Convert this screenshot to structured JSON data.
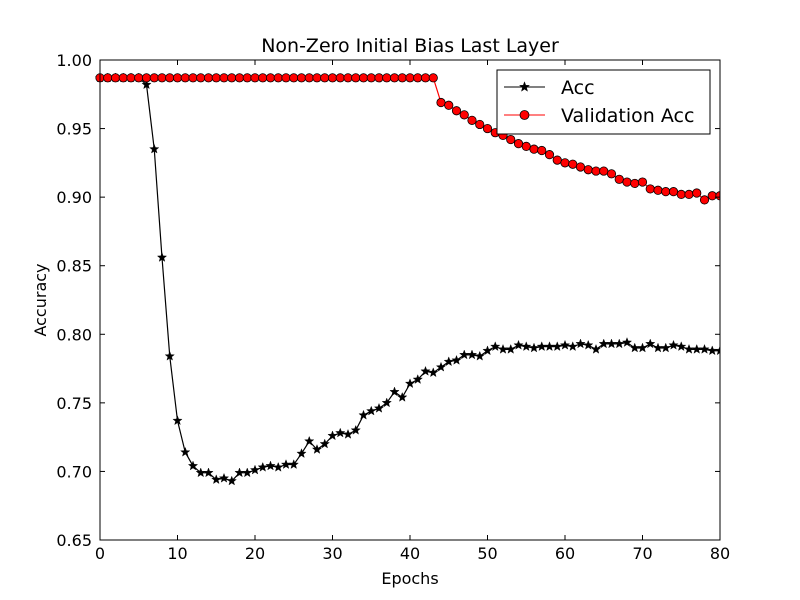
{
  "chart_data": {
    "type": "line",
    "title": "Non-Zero Initial Bias Last Layer",
    "xlabel": "Epochs",
    "ylabel": "Accuracy",
    "xlim": [
      0,
      80
    ],
    "ylim": [
      0.65,
      1.0
    ],
    "xticks": [
      0,
      10,
      20,
      30,
      40,
      50,
      60,
      70,
      80
    ],
    "xtick_labels": [
      "0",
      "10",
      "20",
      "30",
      "40",
      "50",
      "60",
      "70",
      "80"
    ],
    "yticks": [
      0.65,
      0.7,
      0.75,
      0.8,
      0.85,
      0.9,
      0.95,
      1.0
    ],
    "ytick_labels": [
      "0.65",
      "0.70",
      "0.75",
      "0.80",
      "0.85",
      "0.90",
      "0.95",
      "1.00"
    ],
    "grid": false,
    "legend_position": "top-right",
    "x": [
      0,
      1,
      2,
      3,
      4,
      5,
      6,
      7,
      8,
      9,
      10,
      11,
      12,
      13,
      14,
      15,
      16,
      17,
      18,
      19,
      20,
      21,
      22,
      23,
      24,
      25,
      26,
      27,
      28,
      29,
      30,
      31,
      32,
      33,
      34,
      35,
      36,
      37,
      38,
      39,
      40,
      41,
      42,
      43,
      44,
      45,
      46,
      47,
      48,
      49,
      50,
      51,
      52,
      53,
      54,
      55,
      56,
      57,
      58,
      59,
      60,
      61,
      62,
      63,
      64,
      65,
      66,
      67,
      68,
      69,
      70,
      71,
      72,
      73,
      74,
      75,
      76,
      77,
      78,
      79,
      80
    ],
    "series": [
      {
        "name": "Acc",
        "color": "#000000",
        "marker": "star",
        "values": [
          0.987,
          0.987,
          0.987,
          0.987,
          0.987,
          0.987,
          0.982,
          0.935,
          0.856,
          0.784,
          0.737,
          0.714,
          0.704,
          0.699,
          0.699,
          0.694,
          0.695,
          0.693,
          0.699,
          0.699,
          0.701,
          0.703,
          0.704,
          0.703,
          0.705,
          0.705,
          0.713,
          0.722,
          0.716,
          0.72,
          0.726,
          0.728,
          0.727,
          0.73,
          0.741,
          0.744,
          0.746,
          0.75,
          0.758,
          0.754,
          0.764,
          0.767,
          0.773,
          0.772,
          0.776,
          0.78,
          0.781,
          0.785,
          0.785,
          0.784,
          0.788,
          0.791,
          0.789,
          0.789,
          0.792,
          0.791,
          0.79,
          0.791,
          0.791,
          0.791,
          0.792,
          0.791,
          0.793,
          0.792,
          0.789,
          0.793,
          0.793,
          0.793,
          0.794,
          0.79,
          0.79,
          0.793,
          0.79,
          0.79,
          0.792,
          0.791,
          0.789,
          0.789,
          0.789,
          0.788,
          0.788
        ]
      },
      {
        "name": "Validation Acc",
        "color": "#ff0000",
        "marker": "circle",
        "values": [
          0.987,
          0.987,
          0.987,
          0.987,
          0.987,
          0.987,
          0.987,
          0.987,
          0.987,
          0.987,
          0.987,
          0.987,
          0.987,
          0.987,
          0.987,
          0.987,
          0.987,
          0.987,
          0.987,
          0.987,
          0.987,
          0.987,
          0.987,
          0.987,
          0.987,
          0.987,
          0.987,
          0.987,
          0.987,
          0.987,
          0.987,
          0.987,
          0.987,
          0.987,
          0.987,
          0.987,
          0.987,
          0.987,
          0.987,
          0.987,
          0.987,
          0.987,
          0.987,
          0.987,
          0.969,
          0.967,
          0.963,
          0.96,
          0.956,
          0.953,
          0.95,
          0.947,
          0.945,
          0.942,
          0.939,
          0.937,
          0.935,
          0.934,
          0.931,
          0.927,
          0.925,
          0.924,
          0.922,
          0.92,
          0.919,
          0.919,
          0.917,
          0.913,
          0.911,
          0.91,
          0.911,
          0.906,
          0.905,
          0.904,
          0.904,
          0.902,
          0.902,
          0.903,
          0.898,
          0.901,
          0.901
        ]
      }
    ]
  }
}
